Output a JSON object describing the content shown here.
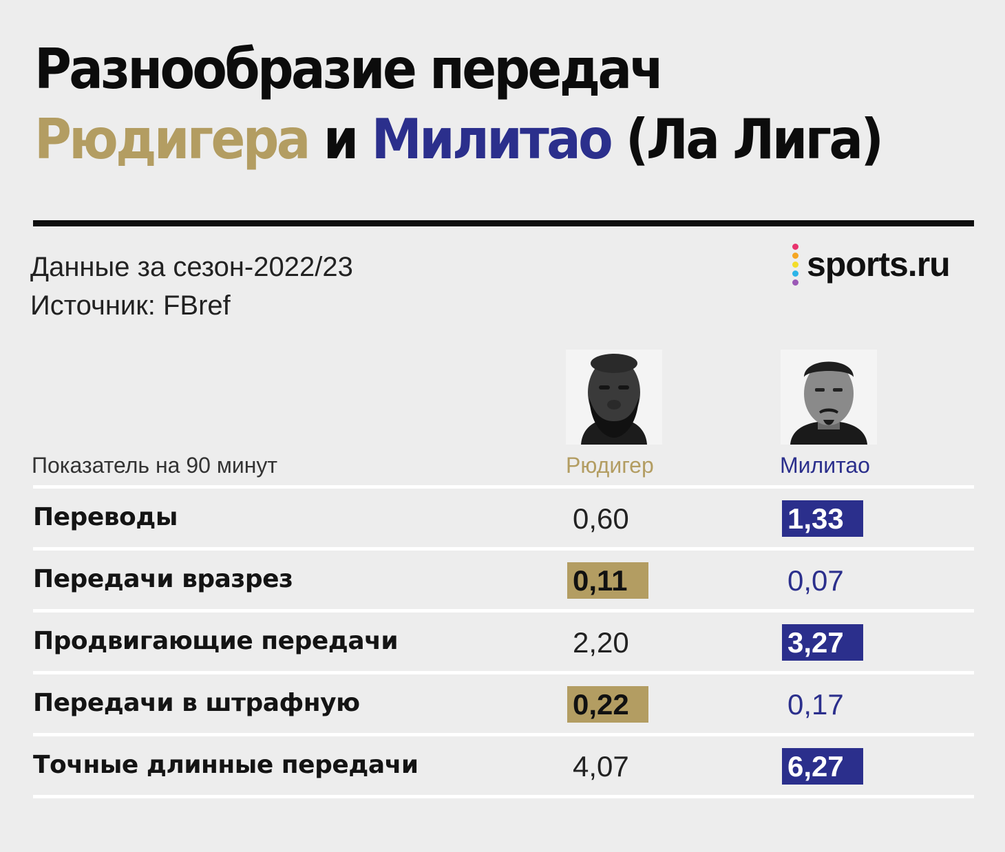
{
  "title": {
    "line1": "Разнообразие передач",
    "p1_name_gen": "Рюдигера",
    "and": " и ",
    "p2_name_gen": "Милитао",
    "league": " (Ла Лига)"
  },
  "meta": {
    "season": "Данные за сезон-2022/23",
    "source": "Источник: FBref"
  },
  "logo": {
    "text": "sports.ru",
    "dot_colors": [
      "#e8336d",
      "#f5a623",
      "#f3dd2a",
      "#2db5e8",
      "#9b59b6"
    ]
  },
  "colors": {
    "player1": "#b39d62",
    "player2": "#2b2f8c"
  },
  "chart_data": {
    "type": "table",
    "metric_header": "Показатель на 90 минут",
    "players": [
      {
        "name": "Рюдигер",
        "color": "#b39d62"
      },
      {
        "name": "Милитао",
        "color": "#2b2f8c"
      }
    ],
    "rows": [
      {
        "metric": "Переводы",
        "values": [
          "0,60",
          "1,33"
        ],
        "leader": 1
      },
      {
        "metric": "Передачи вразрез",
        "values": [
          "0,11",
          "0,07"
        ],
        "leader": 0
      },
      {
        "metric": "Продвигающие передачи",
        "values": [
          "2,20",
          "3,27"
        ],
        "leader": 1
      },
      {
        "metric": "Передачи в штрафную",
        "values": [
          "0,22",
          "0,17"
        ],
        "leader": 0
      },
      {
        "metric": "Точные длинные передачи",
        "values": [
          "4,07",
          "6,27"
        ],
        "leader": 1
      }
    ]
  }
}
